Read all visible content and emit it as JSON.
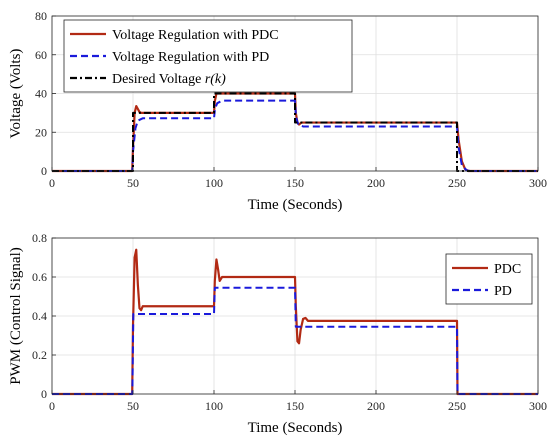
{
  "chart_data": [
    {
      "type": "line",
      "xlabel": "Time (Seconds)",
      "ylabel": "Voltage (Volts)",
      "xlim": [
        0,
        300
      ],
      "ylim": [
        0,
        80
      ],
      "xticks": [
        "0",
        "50",
        "100",
        "150",
        "200",
        "250",
        "300"
      ],
      "yticks": [
        "0",
        "20",
        "40",
        "60",
        "80"
      ],
      "grid": true,
      "legend_position": "top-left",
      "series": [
        {
          "name": "Voltage Regulation with PDC",
          "color": "#b22a14",
          "style": "solid",
          "points": [
            [
              0,
              0
            ],
            [
              49.5,
              0
            ],
            [
              50,
              12
            ],
            [
              51,
              30
            ],
            [
              52,
              33.5
            ],
            [
              53,
              32
            ],
            [
              54,
              30.5
            ],
            [
              55,
              30
            ],
            [
              100,
              30
            ],
            [
              100.5,
              36
            ],
            [
              101.5,
              40
            ],
            [
              103,
              40
            ],
            [
              150,
              40
            ],
            [
              150.5,
              30
            ],
            [
              151.5,
              25
            ],
            [
              152.5,
              24
            ],
            [
              154,
              25
            ],
            [
              250,
              25
            ],
            [
              251,
              16
            ],
            [
              253,
              5
            ],
            [
              255,
              1
            ],
            [
              257,
              0
            ],
            [
              300,
              0
            ]
          ]
        },
        {
          "name": "Voltage Regulation with PD",
          "color": "#1a1adb",
          "style": "dashed",
          "points": [
            [
              0,
              0
            ],
            [
              49.6,
              0
            ],
            [
              50,
              10
            ],
            [
              51.5,
              22
            ],
            [
              53,
              26
            ],
            [
              56,
              27.2
            ],
            [
              100,
              27.2
            ],
            [
              100.6,
              32
            ],
            [
              102,
              35
            ],
            [
              105,
              36.3
            ],
            [
              150,
              36.3
            ],
            [
              150.6,
              28
            ],
            [
              152,
              24
            ],
            [
              155,
              23
            ],
            [
              250,
              23
            ],
            [
              251,
              12
            ],
            [
              253,
              3
            ],
            [
              256,
              0.3
            ],
            [
              258,
              0
            ],
            [
              300,
              0
            ]
          ]
        },
        {
          "name": "Desired Voltage r(k)",
          "name_parts": [
            "Desired Voltage ",
            "r(k)"
          ],
          "color": "#000000",
          "style": "dashdot",
          "points": [
            [
              0,
              0
            ],
            [
              50,
              0
            ],
            [
              50,
              30
            ],
            [
              100,
              30
            ],
            [
              100,
              40
            ],
            [
              150,
              40
            ],
            [
              150,
              25
            ],
            [
              250,
              25
            ],
            [
              250,
              0
            ],
            [
              300,
              0
            ]
          ]
        }
      ]
    },
    {
      "type": "line",
      "xlabel": "Time (Seconds)",
      "ylabel": "PWM (Control Signal)",
      "xlim": [
        0,
        300
      ],
      "ylim": [
        0,
        0.8
      ],
      "xticks": [
        "0",
        "50",
        "100",
        "150",
        "200",
        "250",
        "300"
      ],
      "yticks": [
        "0",
        "0.2",
        "0.4",
        "0.6",
        "0.8"
      ],
      "grid": true,
      "legend_position": "top-right",
      "series": [
        {
          "name": "PDC",
          "color": "#b22a14",
          "style": "solid",
          "points": [
            [
              0,
              0
            ],
            [
              49.5,
              0
            ],
            [
              50,
              0.35
            ],
            [
              51,
              0.7
            ],
            [
              52,
              0.74
            ],
            [
              53,
              0.56
            ],
            [
              54,
              0.44
            ],
            [
              55,
              0.43
            ],
            [
              56,
              0.45
            ],
            [
              100,
              0.45
            ],
            [
              100.5,
              0.58
            ],
            [
              101.5,
              0.69
            ],
            [
              102.5,
              0.64
            ],
            [
              103.5,
              0.58
            ],
            [
              105,
              0.6
            ],
            [
              150,
              0.6
            ],
            [
              150.5,
              0.45
            ],
            [
              151.5,
              0.27
            ],
            [
              152.5,
              0.26
            ],
            [
              153.5,
              0.33
            ],
            [
              155,
              0.385
            ],
            [
              156.5,
              0.39
            ],
            [
              158,
              0.375
            ],
            [
              250,
              0.375
            ],
            [
              250.3,
              0
            ],
            [
              300,
              0
            ]
          ]
        },
        {
          "name": "PD",
          "color": "#1a1adb",
          "style": "dashed",
          "points": [
            [
              0,
              0
            ],
            [
              49.6,
              0
            ],
            [
              50.2,
              0.41
            ],
            [
              100,
              0.41
            ],
            [
              100.5,
              0.545
            ],
            [
              150,
              0.545
            ],
            [
              150.5,
              0.345
            ],
            [
              250,
              0.345
            ],
            [
              250.3,
              0
            ],
            [
              300,
              0
            ]
          ]
        }
      ]
    }
  ]
}
